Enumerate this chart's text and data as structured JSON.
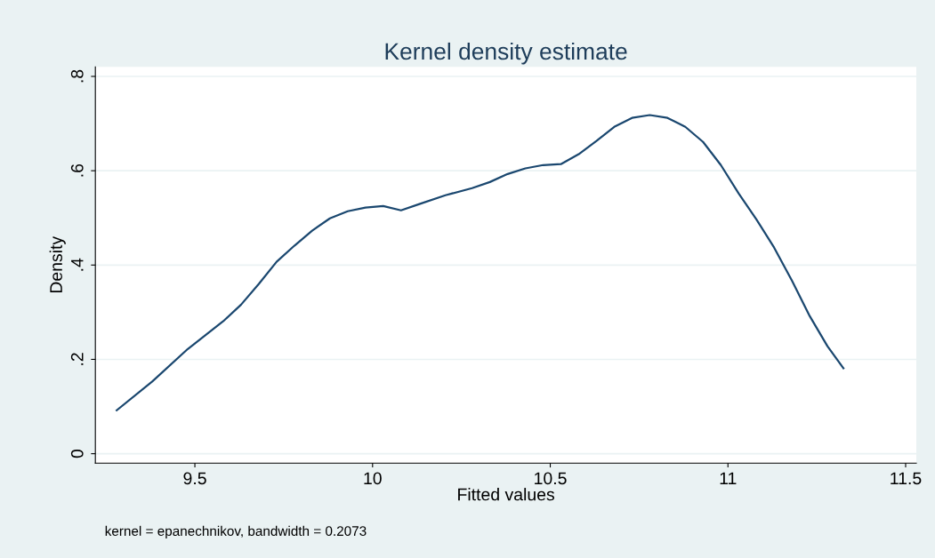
{
  "chart_data": {
    "type": "line",
    "title": "Kernel density estimate",
    "xlabel": "Fitted values",
    "ylabel": "Density",
    "annotations": [
      "kernel = epanechnikov, bandwidth = 0.2073"
    ],
    "x": [
      9.28,
      9.38,
      9.48,
      9.58,
      9.63,
      9.68,
      9.73,
      9.78,
      9.83,
      9.88,
      9.93,
      9.98,
      10.03,
      10.08,
      10.13,
      10.205,
      10.28,
      10.33,
      10.38,
      10.43,
      10.48,
      10.53,
      10.58,
      10.63,
      10.68,
      10.73,
      10.78,
      10.83,
      10.88,
      10.93,
      10.98,
      11.03,
      11.08,
      11.13,
      11.18,
      11.23,
      11.28,
      11.325
    ],
    "series": [
      {
        "color": "#1a476f",
        "values": [
          0.092,
          0.153,
          0.222,
          0.281,
          0.316,
          0.36,
          0.407,
          0.441,
          0.473,
          0.499,
          0.514,
          0.522,
          0.525,
          0.516,
          0.529,
          0.548,
          0.563,
          0.576,
          0.593,
          0.605,
          0.612,
          0.614,
          0.635,
          0.663,
          0.693,
          0.712,
          0.718,
          0.712,
          0.693,
          0.661,
          0.612,
          0.552,
          0.497,
          0.437,
          0.367,
          0.292,
          0.228,
          0.181
        ]
      }
    ],
    "xlim": [
      9.22,
      11.53
    ],
    "ylim": [
      -0.02,
      0.82
    ],
    "xticks": [
      9.5,
      10,
      10.5,
      11,
      11.5
    ],
    "yticks": [
      {
        "value": 0,
        "label": "0"
      },
      {
        "value": 0.2,
        "label": ".2"
      },
      {
        "value": 0.4,
        "label": ".4"
      },
      {
        "value": 0.6,
        "label": ".6"
      },
      {
        "value": 0.8,
        "label": ".8"
      }
    ],
    "grid": "y",
    "marker": "none",
    "line_style": "solid"
  }
}
